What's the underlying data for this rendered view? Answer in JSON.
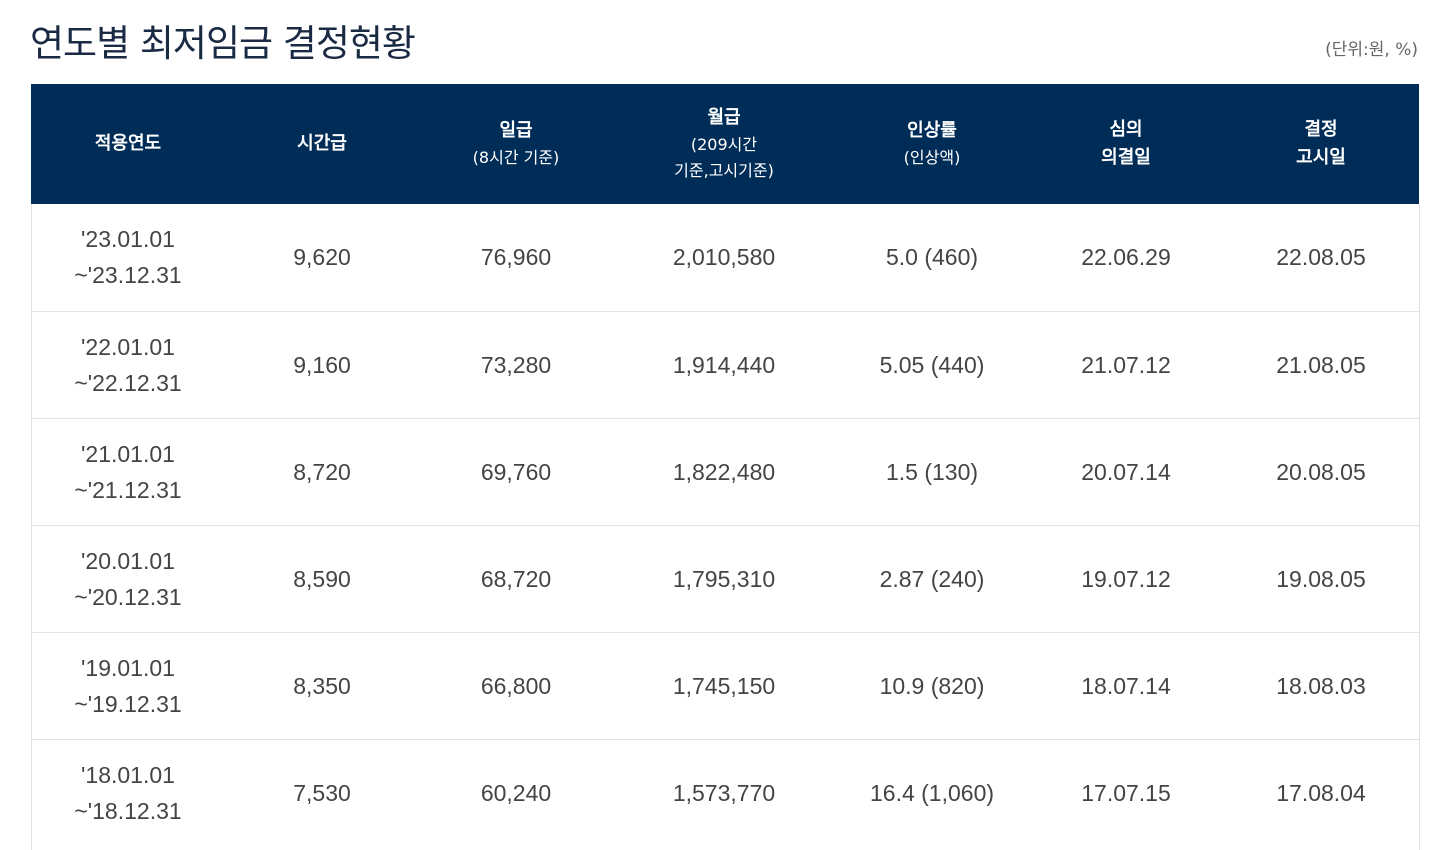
{
  "title": "연도별 최저임금 결정현황",
  "unit_note": "(단위:원, %)",
  "headers": [
    {
      "main": "적용연도",
      "sub": ""
    },
    {
      "main": "시간급",
      "sub": ""
    },
    {
      "main": "일급",
      "sub": "(8시간 기준)"
    },
    {
      "main": "월급",
      "sub_line1": "(209시간",
      "sub_line2": "기준,고시기준)"
    },
    {
      "main": "인상률",
      "sub": "(인상액)"
    },
    {
      "main_line1": "심의",
      "main_line2": "의결일"
    },
    {
      "main_line1": "결정",
      "main_line2": "고시일"
    }
  ],
  "rows": [
    {
      "period_start": "'23.01.01",
      "period_end": "~'23.12.31",
      "hourly": "9,620",
      "daily": "76,960",
      "monthly": "2,010,580",
      "increase": "5.0 (460)",
      "resolution_date": "22.06.29",
      "notice_date": "22.08.05"
    },
    {
      "period_start": "'22.01.01",
      "period_end": "~'22.12.31",
      "hourly": "9,160",
      "daily": "73,280",
      "monthly": "1,914,440",
      "increase": "5.05 (440)",
      "resolution_date": "21.07.12",
      "notice_date": "21.08.05"
    },
    {
      "period_start": "'21.01.01",
      "period_end": "~'21.12.31",
      "hourly": "8,720",
      "daily": "69,760",
      "monthly": "1,822,480",
      "increase": "1.5 (130)",
      "resolution_date": "20.07.14",
      "notice_date": "20.08.05"
    },
    {
      "period_start": "'20.01.01",
      "period_end": "~'20.12.31",
      "hourly": "8,590",
      "daily": "68,720",
      "monthly": "1,795,310",
      "increase": "2.87 (240)",
      "resolution_date": "19.07.12",
      "notice_date": "19.08.05"
    },
    {
      "period_start": "'19.01.01",
      "period_end": "~'19.12.31",
      "hourly": "8,350",
      "daily": "66,800",
      "monthly": "1,745,150",
      "increase": "10.9 (820)",
      "resolution_date": "18.07.14",
      "notice_date": "18.08.03"
    },
    {
      "period_start": "'18.01.01",
      "period_end": "~'18.12.31",
      "hourly": "7,530",
      "daily": "60,240",
      "monthly": "1,573,770",
      "increase": "16.4 (1,060)",
      "resolution_date": "17.07.15",
      "notice_date": "17.08.04"
    }
  ],
  "colors": {
    "header_bg": "#002d58",
    "header_text": "#ffffff",
    "title_text": "#1a2a44",
    "row_divider": "#e2e2e2"
  }
}
